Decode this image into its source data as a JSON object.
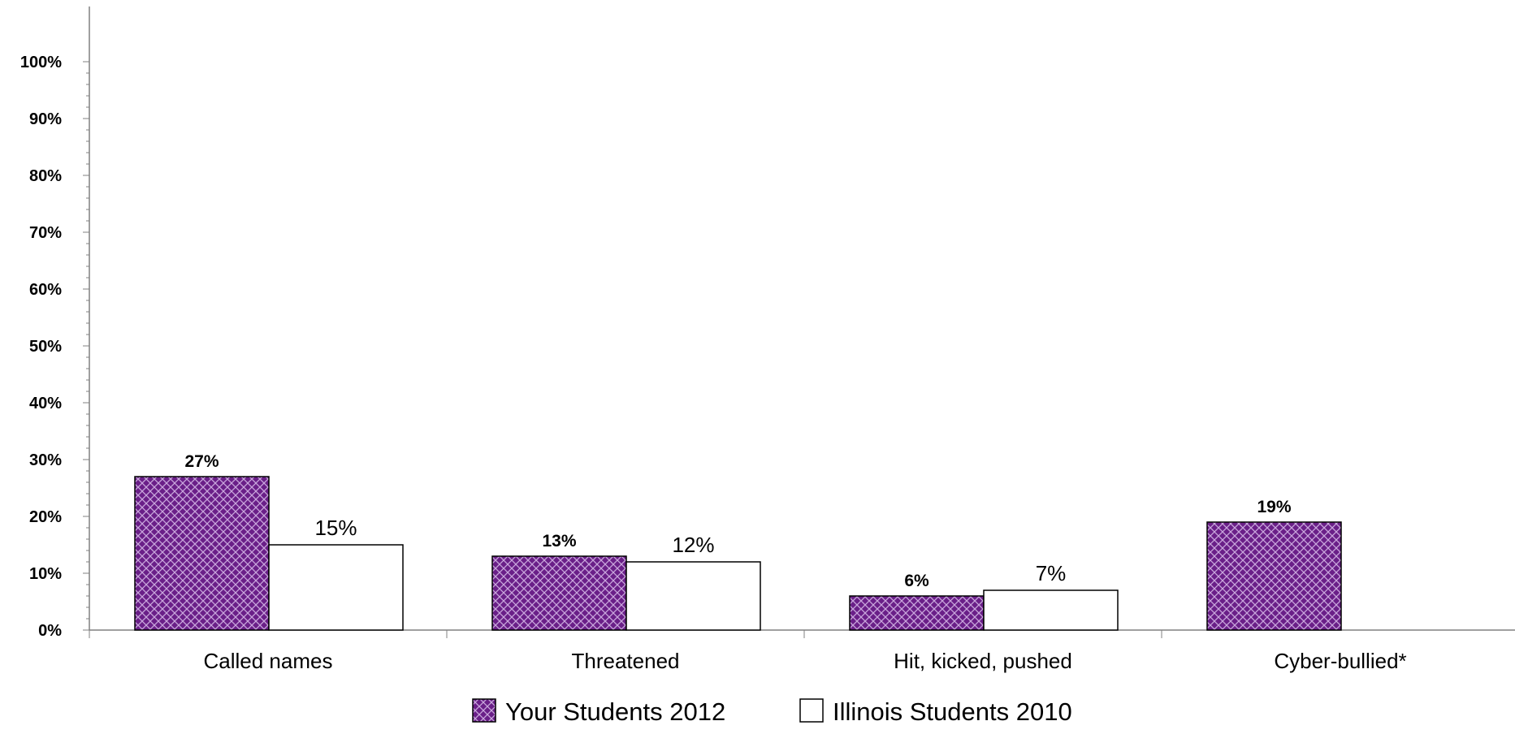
{
  "chart_data": {
    "type": "bar",
    "categories": [
      "Called names",
      "Threatened",
      "Hit, kicked, pushed",
      "Cyber-bullied*"
    ],
    "series": [
      {
        "name": "Your Students 2012",
        "values": [
          27,
          13,
          6,
          19
        ],
        "labels": [
          "27%",
          "13%",
          "6%",
          "19%"
        ],
        "color": "#6a1f88",
        "pattern": "crosshatch"
      },
      {
        "name": "Illinois Students 2010",
        "values": [
          15,
          12,
          7,
          null
        ],
        "labels": [
          "15%",
          "12%",
          "7%",
          ""
        ],
        "color": "#ffffff",
        "pattern": "none"
      }
    ],
    "ylim": [
      0,
      100
    ],
    "yticks": [
      "0%",
      "10%",
      "20%",
      "30%",
      "40%",
      "50%",
      "60%",
      "70%",
      "80%",
      "90%",
      "100%"
    ],
    "grid": false,
    "legend_position": "bottom",
    "title": "",
    "xlabel": "",
    "ylabel": ""
  }
}
